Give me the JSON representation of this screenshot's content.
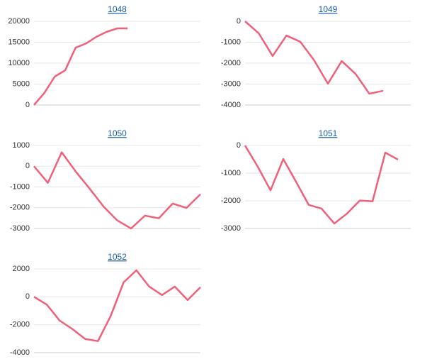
{
  "chart_data": [
    {
      "type": "line",
      "title": "1048",
      "color": "#f0607a",
      "grid": true,
      "categories": [
        null,
        null,
        null,
        null,
        null,
        null,
        null,
        null,
        null,
        null,
        null,
        null,
        null,
        null,
        null,
        null,
        null
      ],
      "values": [
        0,
        2900,
        6800,
        8300,
        13700,
        14700,
        16300,
        17500,
        18300,
        18300,
        null,
        null,
        null,
        null,
        null,
        null,
        null
      ],
      "ylim": [
        0,
        20000
      ],
      "yticks": [
        0,
        5000,
        10000,
        15000,
        20000
      ]
    },
    {
      "type": "line",
      "title": "1049",
      "color": "#f0607a",
      "grid": true,
      "categories": [
        null,
        null,
        null,
        null,
        null,
        null,
        null,
        null,
        null,
        null,
        null,
        null,
        null
      ],
      "values": [
        0,
        -580,
        -1660,
        -680,
        -980,
        -1860,
        -2980,
        -1900,
        -2510,
        -3460,
        -3320,
        null,
        null
      ],
      "ylim": [
        -4000,
        0
      ],
      "yticks": [
        0,
        -1000,
        -2000,
        -3000,
        -4000
      ]
    },
    {
      "type": "line",
      "title": "1050",
      "color": "#f0607a",
      "grid": true,
      "categories": [
        null,
        null,
        null,
        null,
        null,
        null,
        null,
        null,
        null,
        null,
        null,
        null,
        null
      ],
      "values": [
        0,
        -800,
        670,
        -250,
        -1070,
        -1930,
        -2610,
        -3000,
        -2380,
        -2510,
        -1800,
        -2010,
        -1350
      ],
      "ylim": [
        -3000,
        1000
      ],
      "yticks": [
        1000,
        0,
        -1000,
        -2000,
        -3000
      ]
    },
    {
      "type": "line",
      "title": "1051",
      "color": "#f0607a",
      "grid": true,
      "categories": [
        null,
        null,
        null,
        null,
        null,
        null,
        null,
        null,
        null,
        null,
        null,
        null,
        null,
        null
      ],
      "values": [
        0,
        -770,
        -1620,
        -490,
        -1310,
        -2150,
        -2280,
        -2820,
        -2460,
        -1990,
        -2020,
        -260,
        -510,
        null
      ],
      "ylim": [
        -3000,
        0
      ],
      "yticks": [
        0,
        -1000,
        -2000,
        -3000
      ]
    },
    {
      "type": "line",
      "title": "1052",
      "color": "#f0607a",
      "grid": true,
      "categories": [
        null,
        null,
        null,
        null,
        null,
        null,
        null,
        null,
        null,
        null,
        null,
        null,
        null,
        null
      ],
      "values": [
        0,
        -560,
        -1700,
        -2310,
        -3020,
        -3170,
        -1350,
        1040,
        1900,
        730,
        130,
        730,
        -230,
        690
      ],
      "ylim": [
        -4000,
        2000
      ],
      "yticks": [
        2000,
        0,
        -2000,
        -4000
      ]
    }
  ]
}
